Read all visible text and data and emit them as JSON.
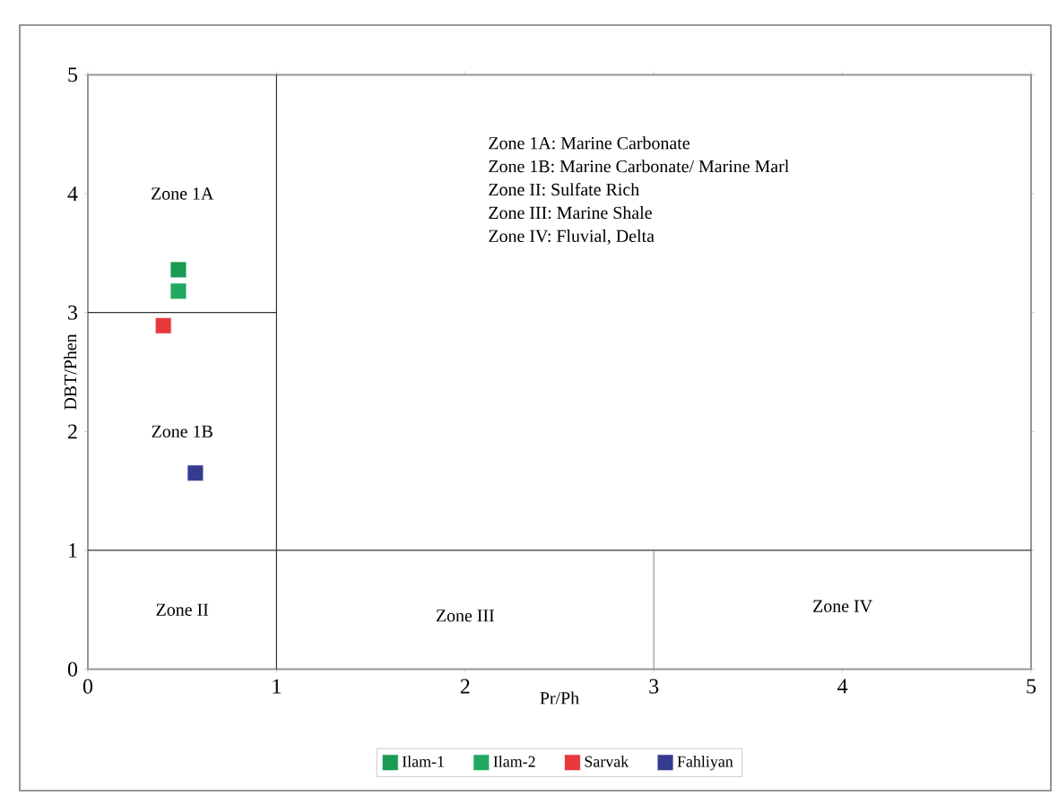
{
  "chart_data": {
    "type": "scatter",
    "xlabel": "Pr/Ph",
    "ylabel": "DBT/Phen",
    "xlim": [
      0,
      5
    ],
    "ylim": [
      0,
      5
    ],
    "xticks": [
      0,
      1,
      2,
      3,
      4,
      5
    ],
    "yticks": [
      0,
      1,
      2,
      3,
      4,
      5
    ],
    "marker": "square",
    "legend": "bottom",
    "series": [
      {
        "name": "Ilam-1",
        "color": "#1a9a52",
        "x": [
          0.48
        ],
        "values": [
          3.36
        ]
      },
      {
        "name": "Ilam-2",
        "color": "#20a862",
        "x": [
          0.48
        ],
        "values": [
          3.18
        ]
      },
      {
        "name": "Sarvak",
        "color": "#e8383d",
        "x": [
          0.4
        ],
        "values": [
          2.89
        ]
      },
      {
        "name": "Fahliyan",
        "color": "#353b8f",
        "x": [
          0.57
        ],
        "values": [
          1.65
        ]
      },
      {
        "type": "line",
        "marker": "none",
        "color": "#333333",
        "x": [
          1,
          1
        ],
        "values": [
          0,
          5
        ]
      },
      {
        "type": "line",
        "marker": "none",
        "color": "#333333",
        "x": [
          0,
          5
        ],
        "values": [
          1,
          1
        ]
      },
      {
        "type": "line",
        "marker": "none",
        "color": "#333333",
        "x": [
          0,
          1
        ],
        "values": [
          3,
          3
        ]
      },
      {
        "type": "line",
        "marker": "none",
        "color": "#999999",
        "x": [
          3,
          3
        ],
        "values": [
          0,
          1
        ]
      }
    ],
    "annotations": [
      "Zone 1A",
      "Zone 1B",
      "Zone II",
      "Zone III",
      "Zone IV",
      "Zone 1A: Marine Carbonate",
      "Zone 1B: Marine Carbonate/ Marine Marl",
      "Zone II: Sulfate Rich",
      "Zone III: Marine Shale",
      "Zone IV: Fluvial, Delta"
    ]
  }
}
